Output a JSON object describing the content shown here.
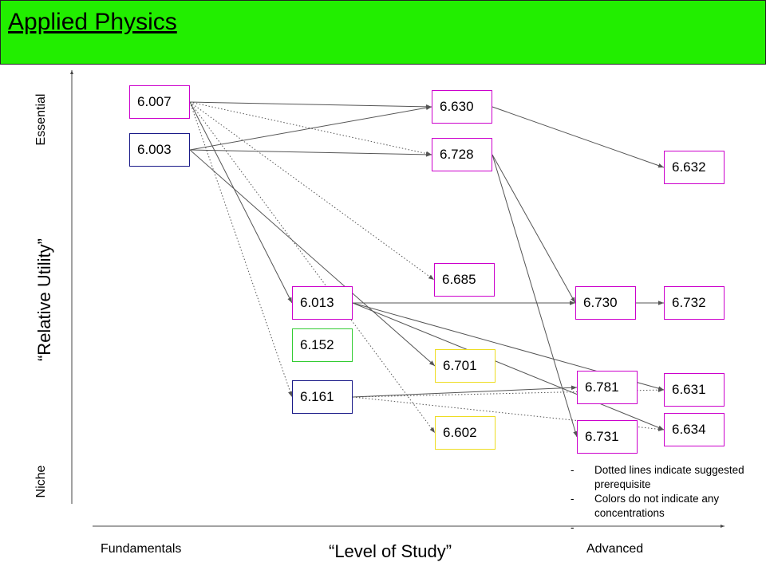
{
  "header": {
    "title": "Applied Physics",
    "bg_color": "#22ee00"
  },
  "axes": {
    "y_label": "“Relative Utility”",
    "y_top": "Essential",
    "y_bottom": "Niche",
    "x_label": "“Level of Study”",
    "x_left": "Fundamentals",
    "x_right": "Advanced"
  },
  "colors": {
    "purple": "#cc00cc",
    "navy": "#1a1a88",
    "green": "#33cc33",
    "yellow": "#eedd22",
    "edge": "#555555"
  },
  "nodes": [
    {
      "id": "6.007",
      "label": "6.007",
      "color": "purple"
    },
    {
      "id": "6.003",
      "label": "6.003",
      "color": "navy"
    },
    {
      "id": "6.630",
      "label": "6.630",
      "color": "purple"
    },
    {
      "id": "6.728",
      "label": "6.728",
      "color": "purple"
    },
    {
      "id": "6.632",
      "label": "6.632",
      "color": "purple"
    },
    {
      "id": "6.685",
      "label": "6.685",
      "color": "purple"
    },
    {
      "id": "6.013",
      "label": "6.013",
      "color": "purple"
    },
    {
      "id": "6.152",
      "label": "6.152",
      "color": "green"
    },
    {
      "id": "6.161",
      "label": "6.161",
      "color": "navy"
    },
    {
      "id": "6.701",
      "label": "6.701",
      "color": "yellow"
    },
    {
      "id": "6.602",
      "label": "6.602",
      "color": "yellow"
    },
    {
      "id": "6.730",
      "label": "6.730",
      "color": "purple"
    },
    {
      "id": "6.732",
      "label": "6.732",
      "color": "purple"
    },
    {
      "id": "6.781",
      "label": "6.781",
      "color": "purple"
    },
    {
      "id": "6.631",
      "label": "6.631",
      "color": "purple"
    },
    {
      "id": "6.731",
      "label": "6.731",
      "color": "purple"
    },
    {
      "id": "6.634",
      "label": "6.634",
      "color": "purple"
    }
  ],
  "edges": [
    {
      "from": "6.007",
      "to": "6.630",
      "dotted": false
    },
    {
      "from": "6.007",
      "to": "6.728",
      "dotted": true
    },
    {
      "from": "6.007",
      "to": "6.685",
      "dotted": true
    },
    {
      "from": "6.007",
      "to": "6.013",
      "dotted": false
    },
    {
      "from": "6.007",
      "to": "6.161",
      "dotted": true
    },
    {
      "from": "6.007",
      "to": "6.602",
      "dotted": true
    },
    {
      "from": "6.003",
      "to": "6.630",
      "dotted": false
    },
    {
      "from": "6.003",
      "to": "6.728",
      "dotted": false
    },
    {
      "from": "6.003",
      "to": "6.701",
      "dotted": false
    },
    {
      "from": "6.630",
      "to": "6.632",
      "dotted": false
    },
    {
      "from": "6.728",
      "to": "6.730",
      "dotted": false
    },
    {
      "from": "6.728",
      "to": "6.731",
      "dotted": false
    },
    {
      "from": "6.013",
      "to": "6.730",
      "dotted": false
    },
    {
      "from": "6.013",
      "to": "6.631",
      "dotted": false
    },
    {
      "from": "6.013",
      "to": "6.634",
      "dotted": false
    },
    {
      "from": "6.730",
      "to": "6.732",
      "dotted": false
    },
    {
      "from": "6.161",
      "to": "6.781",
      "dotted": false
    },
    {
      "from": "6.161",
      "to": "6.631",
      "dotted": true
    },
    {
      "from": "6.161",
      "to": "6.634",
      "dotted": true
    }
  ],
  "notes": [
    "Dotted lines indicate suggested prerequisite",
    "Colors do not indicate any concentrations",
    ""
  ]
}
